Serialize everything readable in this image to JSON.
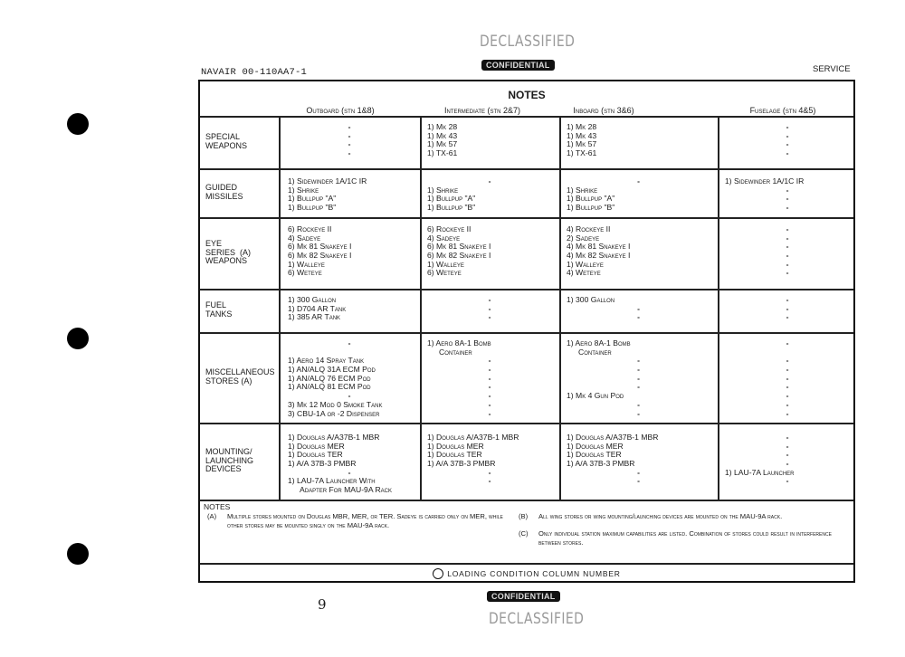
{
  "header": {
    "doc_id": "NAVAIR 00-110AA7-1",
    "section": "SERVICE",
    "stamp_top_declassified": "DECLASSIFIED",
    "stamp_top_confidential": "CONFIDENTIAL",
    "stamp_bottom_confidential": "CONFIDENTIAL",
    "stamp_bottom_declassified": "DECLASSIFIED",
    "page_number": "9"
  },
  "table": {
    "title": "NOTES",
    "columns": [
      "Outboard (stn 1&8)",
      "Intermediate (stn 2&7)",
      "Inboard (stn 3&6)",
      "Fuselage (stn 4&5)"
    ],
    "rows": [
      {
        "label": "Special\nWeapons",
        "cells": [
          [
            "-",
            "-",
            "-",
            "-"
          ],
          [
            "1) Mk 28",
            "1) Mk 43",
            "1) Mk 57",
            "1) TX-61"
          ],
          [
            "1) Mk 28",
            "1) Mk 43",
            "1) Mk 57",
            "1) TX-61"
          ],
          [
            "-",
            "-",
            "-",
            "-"
          ]
        ]
      },
      {
        "label": "Guided\nMissiles",
        "cells": [
          [
            "1) Sidewinder 1A/1C IR",
            "1) Shrike",
            "1) Bullpup \"A\"",
            "1) Bullpup \"B\""
          ],
          [
            "-",
            "1) Shrike",
            "1) Bullpup \"A\"",
            "1) Bullpup \"B\""
          ],
          [
            "-",
            "1) Shrike",
            "1) Bullpup \"A\"",
            "1) Bullpup \"B\""
          ],
          [
            "1) Sidewinder 1A/1C IR",
            "-",
            "-",
            "-"
          ]
        ]
      },
      {
        "label": "Eye\nSeries  (A)\nWeapons",
        "cells": [
          [
            "6) Rockeye II",
            "4) Sadeye",
            "6) Mk 81 Snakeye I",
            "6) Mk 82 Snakeye I",
            "1) Walleye",
            "6) Weteye"
          ],
          [
            "6) Rockeye II",
            "4) Sadeye",
            "6) Mk 81 Snakeye I",
            "6) Mk 82 Snakeye I",
            "1) Walleye",
            "6) Weteye"
          ],
          [
            "4) Rockeye II",
            "2) Sadeye",
            "4) Mk 81 Snakeye I",
            "4) Mk 82 Snakeye I",
            "1) Walleye",
            "4) Weteye"
          ],
          [
            "-",
            "-",
            "-",
            "-",
            "-",
            "-"
          ]
        ]
      },
      {
        "label": "Fuel\nTanks",
        "cells": [
          [
            "1) 300 Gallon",
            "1) D704 AR Tank",
            "1) 385 AR Tank"
          ],
          [
            "-",
            "-",
            "-"
          ],
          [
            "1) 300 Gallon",
            "-",
            "-"
          ],
          [
            "-",
            "-",
            "-"
          ]
        ]
      },
      {
        "label": "Miscellaneous\nStores (A)",
        "cells": [
          [
            "-",
            "",
            "1) Aero 14 Spray Tank",
            "1) AN/ALQ 31A ECM Pod",
            "1) AN/ALQ 76 ECM Pod",
            "1) AN/ALQ 81 ECM Pod",
            "-",
            "3) Mk 12 Mod 0 Smoke Tank",
            "3) CBU-1A or -2 Dispenser"
          ],
          [
            "1) Aero 8A-1 Bomb",
            ">Container",
            "-",
            "-",
            "-",
            "-",
            "-",
            "-",
            "-"
          ],
          [
            "1) Aero 8A-1 Bomb",
            ">Container",
            "-",
            "-",
            "-",
            "-",
            "1) Mk 4 Gun Pod",
            "-",
            "-"
          ],
          [
            "-",
            "",
            "-",
            "-",
            "-",
            "-",
            "-",
            "-",
            "-"
          ]
        ]
      },
      {
        "label": "Mounting/\nLaunching\nDevices",
        "cells": [
          [
            "1) Douglas A/A37B-1 MBR",
            "1) Douglas MER",
            "1) Douglas TER",
            "1) A/A 37B-3 PMBR",
            "-",
            "1) LAU-7A Launcher With",
            ">Adapter For MAU-9A Rack"
          ],
          [
            "1) Douglas A/A37B-1 MBR",
            "1) Douglas MER",
            "1) Douglas TER",
            "1) A/A 37B-3 PMBR",
            "-",
            "-"
          ],
          [
            "1) Douglas A/A37B-1 MBR",
            "1) Douglas MER",
            "1) Douglas TER",
            "1) A/A 37B-3 PMBR",
            "-",
            "-"
          ],
          [
            "-",
            "-",
            "-",
            "-",
            "1) LAU-7A Launcher",
            "-"
          ]
        ]
      }
    ]
  },
  "notes": {
    "heading": "NOTES",
    "a_mark": "(A)",
    "a_text": "Multiple stores mounted on Douglas MBR, MER, or TER. Sadeye is carried only on MER, while other stores may be mounted singly on the MAU-9A rack.",
    "b_mark": "(B)",
    "b_text": "All wing stores or wing mounting/launching devices are mounted on the MAU-9A rack.",
    "c_mark": "(C)",
    "c_text": "Only individual station maximum capabilities are listed. Combination of stores could result in interference between stores."
  },
  "legend": {
    "text": "Loading condition column number",
    "icon": "circle-icon"
  }
}
